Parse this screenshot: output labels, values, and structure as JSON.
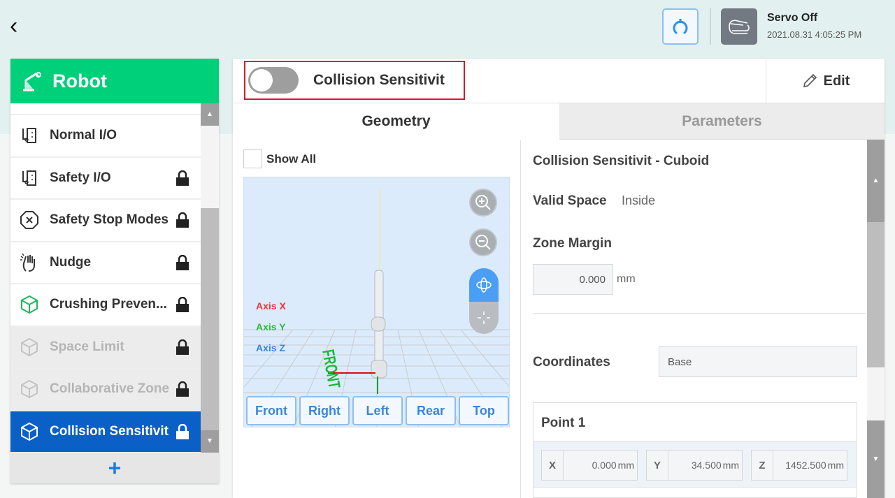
{
  "header": {
    "back_icon": "chevron-left-icon",
    "servo_status": "Servo Off",
    "datetime": "2021.08.31 4:05:25 PM"
  },
  "sidebar": {
    "title": "Robot",
    "items": [
      {
        "label": "Normal I/O",
        "icon": "io-icon",
        "locked": false,
        "state": "normal"
      },
      {
        "label": "Safety I/O",
        "icon": "io-icon",
        "locked": true,
        "state": "normal"
      },
      {
        "label": "Safety Stop Modes",
        "icon": "stop-octagon-icon",
        "locked": true,
        "state": "normal"
      },
      {
        "label": "Nudge",
        "icon": "hand-icon",
        "locked": true,
        "state": "normal"
      },
      {
        "label": "Crushing Preven...",
        "icon": "cube-icon",
        "locked": true,
        "state": "normal"
      },
      {
        "label": "Space Limit",
        "icon": "cube-icon",
        "locked": true,
        "state": "disabled"
      },
      {
        "label": "Collaborative Zone",
        "icon": "cube-icon",
        "locked": true,
        "state": "disabled"
      },
      {
        "label": "Collision Sensitivit",
        "icon": "cube-icon",
        "locked": true,
        "state": "selected"
      }
    ],
    "add_label": "+"
  },
  "main": {
    "title": "Collision Sensitivit",
    "toggle_on": false,
    "edit_label": "Edit",
    "tabs": [
      {
        "label": "Geometry",
        "active": true
      },
      {
        "label": "Parameters",
        "active": false
      }
    ],
    "show_all": "Show All",
    "axes": {
      "x": "Axis X",
      "y": "Axis Y",
      "z": "Axis Z"
    },
    "front_label": "FRONT",
    "views": [
      "Front",
      "Right",
      "Left",
      "Rear",
      "Top"
    ],
    "detail": {
      "heading": "Collision Sensitivit - Cuboid",
      "valid_space_label": "Valid Space",
      "valid_space": "Inside",
      "zone_margin_label": "Zone Margin",
      "zone_margin": "0.000",
      "zone_margin_unit": "mm",
      "coordinates_label": "Coordinates",
      "coordinates": "Base",
      "point_title": "Point 1",
      "point": [
        {
          "k": "X",
          "v": "0.000",
          "u": "mm"
        },
        {
          "k": "Y",
          "v": "34.500",
          "u": "mm"
        },
        {
          "k": "Z",
          "v": "1452.500",
          "u": "mm"
        }
      ]
    }
  },
  "colors": {
    "accent_green": "#00d07a",
    "selected_blue": "#0a60c6",
    "highlight_red": "#e0161e",
    "axis_x": "#f0343a",
    "axis_y": "#2dbb3a",
    "axis_z": "#3b86d6"
  }
}
